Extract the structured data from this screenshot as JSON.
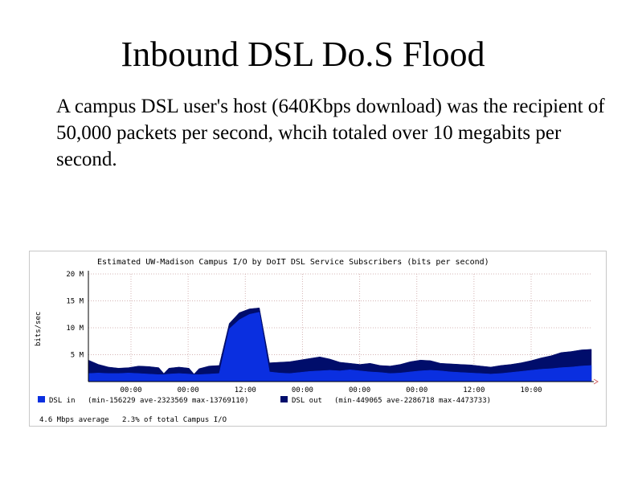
{
  "slide": {
    "title": "Inbound DSL Do.S Flood",
    "body": "A campus DSL user's host (640Kbps download) was the recipient of 50,000 packets per second, whcih totaled over 10 megabits per second."
  },
  "chart_data": {
    "type": "area",
    "title": "Estimated UW-Madison Campus I/O by DoIT DSL Service Subscribers (bits per second)",
    "ylabel": "bits/sec",
    "ylim": [
      0,
      20
    ],
    "y_unit": "M",
    "y_ticks": [
      {
        "value": 20,
        "label": "20 M"
      },
      {
        "value": 15,
        "label": "15 M"
      },
      {
        "value": 10,
        "label": "10 M"
      },
      {
        "value": 5,
        "label": "5 M"
      }
    ],
    "x_ticks": [
      "00:00",
      "00:00",
      "12:00",
      "00:00",
      "00:00",
      "00:00",
      "12:00",
      "10:00"
    ],
    "grid": true,
    "colors": {
      "dsl_in": "#0a2fe0",
      "dsl_out": "#000d6b",
      "grid": "#d4b4b4",
      "axis": "#000000"
    },
    "x": [
      0,
      2,
      4,
      6,
      8,
      10,
      12,
      14,
      15,
      16,
      18,
      20,
      21,
      22,
      24,
      26,
      28,
      30,
      32,
      34,
      36,
      38,
      40,
      42,
      44,
      46,
      48,
      50,
      52,
      54,
      56,
      58,
      60,
      62,
      64,
      66,
      68,
      70,
      72,
      74,
      76,
      78,
      80,
      82,
      84,
      86,
      88,
      90,
      92,
      94,
      96,
      98,
      100
    ],
    "series": [
      {
        "name": "DSL in",
        "legend": "DSL in",
        "stats": "(min-156229  ave-2323569  max-13769110)",
        "values": [
          1.5,
          1.6,
          1.5,
          1.5,
          1.6,
          1.5,
          1.4,
          1.3,
          1.3,
          1.4,
          1.5,
          1.4,
          1.3,
          1.3,
          1.4,
          1.5,
          9.8,
          11.5,
          12.5,
          12.9,
          1.8,
          1.6,
          1.5,
          1.7,
          1.9,
          2.0,
          2.1,
          2.0,
          2.2,
          2.0,
          1.8,
          1.7,
          1.5,
          1.6,
          1.8,
          2.0,
          2.1,
          2.0,
          1.8,
          1.7,
          1.6,
          1.5,
          1.4,
          1.5,
          1.7,
          1.9,
          2.1,
          2.3,
          2.4,
          2.6,
          2.7,
          2.9,
          3.0
        ]
      },
      {
        "name": "DSL out",
        "legend": "DSL out",
        "stats": "(min-449065  ave-2286718  max-4473733)",
        "values": [
          4.0,
          3.2,
          2.7,
          2.5,
          2.6,
          2.9,
          2.8,
          2.6,
          1.5,
          2.5,
          2.7,
          2.5,
          1.4,
          2.4,
          2.9,
          3.0,
          10.8,
          12.8,
          13.5,
          13.7,
          3.5,
          3.6,
          3.7,
          4.0,
          4.3,
          4.6,
          4.2,
          3.6,
          3.4,
          3.2,
          3.4,
          3.0,
          2.9,
          3.2,
          3.7,
          4.0,
          3.9,
          3.4,
          3.3,
          3.2,
          3.1,
          2.9,
          2.7,
          3.0,
          3.2,
          3.5,
          3.9,
          4.4,
          4.8,
          5.4,
          5.6,
          5.9,
          6.0
        ]
      }
    ],
    "footer": "4.6 Mbps average   2.3% of total Campus I/O"
  }
}
